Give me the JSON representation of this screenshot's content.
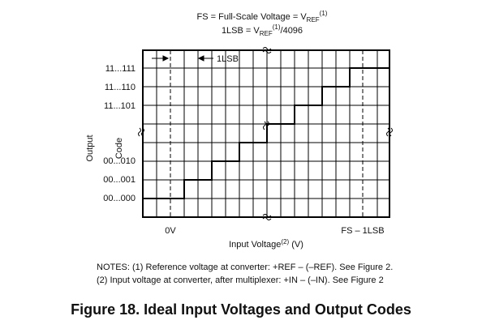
{
  "header": {
    "line1": {
      "text": "FS = Full-Scale Voltage = V",
      "sub": "REF",
      "sup": "(1)"
    },
    "line2": {
      "text": "1LSB = V",
      "sub": "REF",
      "sup": "(1)",
      "tail": "/4096"
    }
  },
  "lsb_marker": "1LSB",
  "y_axis": {
    "title1": "Output",
    "title2": "Code",
    "labels": [
      "11...111",
      "11...110",
      "11...101",
      "00...010",
      "00...001",
      "00...000"
    ]
  },
  "x_axis": {
    "labels": [
      "0V",
      "FS – 1LSB"
    ],
    "title": {
      "text": "Input Voltage",
      "sup": "(2)",
      "tail": " (V)"
    }
  },
  "notes": [
    "NOTES: (1) Reference voltage at converter: +REF – (–REF). See Figure 2.",
    "(2) Input voltage at converter, after multiplexer: +IN – (–IN). See Figure 2"
  ],
  "caption": "Figure 18.  Ideal Input Voltages and Output Codes"
}
